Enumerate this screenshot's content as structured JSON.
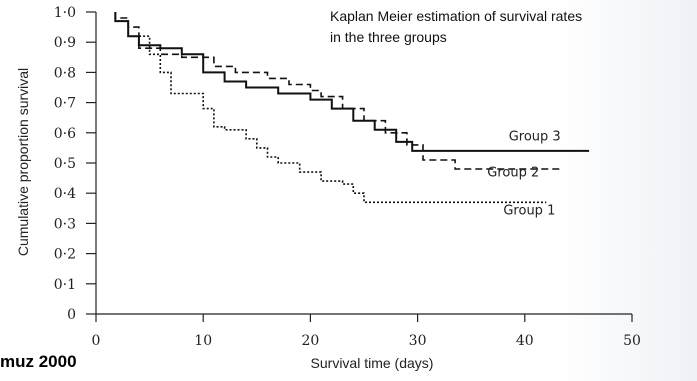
{
  "chart_data": {
    "type": "line",
    "title": "Kaplan Meier estimation of survival rates in the three groups",
    "title_lines": [
      "Kaplan Meier estimation of survival rates",
      "in the three groups"
    ],
    "xlabel": "Survival time (days)",
    "ylabel": "Cumulative proportion survival",
    "xlim": [
      0,
      50
    ],
    "ylim": [
      0,
      1.0
    ],
    "x_ticks": [
      0,
      10,
      20,
      30,
      40,
      50
    ],
    "x_tick_labels": [
      "0",
      "10",
      "20",
      "30",
      "40",
      "50"
    ],
    "y_ticks": [
      0,
      0.1,
      0.2,
      0.3,
      0.4,
      0.5,
      0.6,
      0.7,
      0.8,
      0.9,
      1.0
    ],
    "y_tick_labels": [
      "0",
      "0·1",
      "0·2",
      "0·3",
      "0·4",
      "0·5",
      "0·6",
      "0·7",
      "0·8",
      "0·9",
      "1·0"
    ],
    "grid": false,
    "series": [
      {
        "name": "Group 3",
        "style": "solid",
        "color": "#111111",
        "points": [
          [
            1.8,
            1.0
          ],
          [
            1.8,
            0.97
          ],
          [
            3,
            0.97
          ],
          [
            3,
            0.92
          ],
          [
            4,
            0.92
          ],
          [
            4,
            0.89
          ],
          [
            6,
            0.89
          ],
          [
            6,
            0.88
          ],
          [
            8,
            0.88
          ],
          [
            8,
            0.86
          ],
          [
            10,
            0.86
          ],
          [
            10,
            0.8
          ],
          [
            12,
            0.8
          ],
          [
            12,
            0.77
          ],
          [
            14,
            0.77
          ],
          [
            14,
            0.75
          ],
          [
            17,
            0.75
          ],
          [
            17,
            0.73
          ],
          [
            20,
            0.73
          ],
          [
            20,
            0.71
          ],
          [
            22,
            0.71
          ],
          [
            22,
            0.68
          ],
          [
            24,
            0.68
          ],
          [
            24,
            0.64
          ],
          [
            26,
            0.64
          ],
          [
            26,
            0.61
          ],
          [
            28,
            0.61
          ],
          [
            28,
            0.57
          ],
          [
            29.5,
            0.57
          ],
          [
            29.5,
            0.54
          ],
          [
            46,
            0.54
          ]
        ]
      },
      {
        "name": "Group 2",
        "style": "dashed",
        "color": "#111111",
        "points": [
          [
            1.8,
            1.0
          ],
          [
            1.8,
            0.98
          ],
          [
            3,
            0.98
          ],
          [
            3,
            0.95
          ],
          [
            4,
            0.95
          ],
          [
            4,
            0.88
          ],
          [
            6,
            0.88
          ],
          [
            6,
            0.86
          ],
          [
            8,
            0.86
          ],
          [
            8,
            0.85
          ],
          [
            11,
            0.85
          ],
          [
            11,
            0.82
          ],
          [
            13,
            0.82
          ],
          [
            13,
            0.8
          ],
          [
            16,
            0.8
          ],
          [
            16,
            0.78
          ],
          [
            18,
            0.78
          ],
          [
            18,
            0.76
          ],
          [
            20,
            0.76
          ],
          [
            20,
            0.74
          ],
          [
            21,
            0.74
          ],
          [
            21,
            0.72
          ],
          [
            23,
            0.72
          ],
          [
            23,
            0.68
          ],
          [
            25,
            0.68
          ],
          [
            25,
            0.64
          ],
          [
            27,
            0.64
          ],
          [
            27,
            0.6
          ],
          [
            29,
            0.6
          ],
          [
            29,
            0.56
          ],
          [
            30.5,
            0.56
          ],
          [
            30.5,
            0.51
          ],
          [
            33.5,
            0.51
          ],
          [
            33.5,
            0.48
          ],
          [
            43.5,
            0.48
          ]
        ]
      },
      {
        "name": "Group 1",
        "style": "dotted",
        "color": "#111111",
        "points": [
          [
            1.8,
            1.0
          ],
          [
            1.8,
            0.97
          ],
          [
            3,
            0.97
          ],
          [
            3,
            0.92
          ],
          [
            5,
            0.92
          ],
          [
            5,
            0.86
          ],
          [
            6,
            0.86
          ],
          [
            6,
            0.8
          ],
          [
            7,
            0.8
          ],
          [
            7,
            0.73
          ],
          [
            10,
            0.73
          ],
          [
            10,
            0.68
          ],
          [
            11,
            0.68
          ],
          [
            11,
            0.62
          ],
          [
            12,
            0.62
          ],
          [
            12,
            0.61
          ],
          [
            14,
            0.61
          ],
          [
            14,
            0.58
          ],
          [
            15,
            0.58
          ],
          [
            15,
            0.55
          ],
          [
            16,
            0.55
          ],
          [
            16,
            0.52
          ],
          [
            17,
            0.52
          ],
          [
            17,
            0.5
          ],
          [
            19,
            0.5
          ],
          [
            19,
            0.47
          ],
          [
            21,
            0.47
          ],
          [
            21,
            0.44
          ],
          [
            23,
            0.44
          ],
          [
            23,
            0.43
          ],
          [
            24,
            0.43
          ],
          [
            24,
            0.4
          ],
          [
            25,
            0.4
          ],
          [
            25,
            0.37
          ],
          [
            42,
            0.37
          ]
        ]
      }
    ],
    "annotations": [
      {
        "text": "Group 3",
        "x": 38.5,
        "y": 0.575
      },
      {
        "text": "Group 2",
        "x": 36.5,
        "y": 0.455
      },
      {
        "text": "Group 1",
        "x": 38,
        "y": 0.33
      }
    ]
  },
  "source": {
    "text": "muz 2000"
  }
}
